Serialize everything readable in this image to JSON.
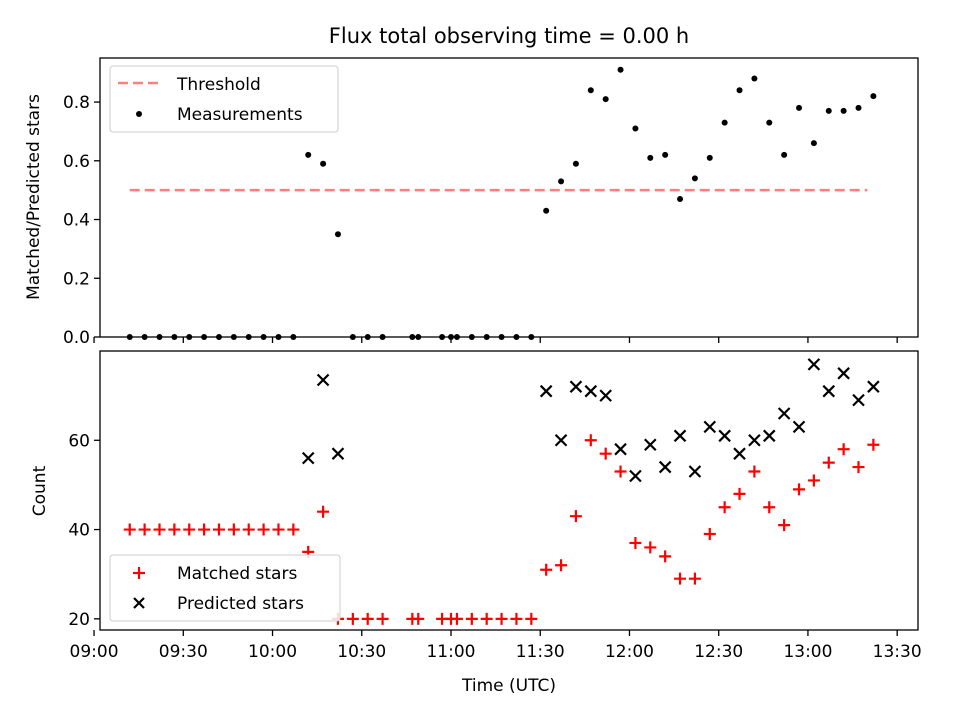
{
  "chart_data": [
    {
      "type": "scatter",
      "title": "Flux total observing time = 0.00 h",
      "ylabel": "Matched/Predicted stars",
      "xlabel": "",
      "xlim": [
        "09:02",
        "13:37"
      ],
      "ylim": [
        0,
        0.95
      ],
      "yticks": [
        "0.0",
        "0.2",
        "0.4",
        "0.6",
        "0.8"
      ],
      "grid": false,
      "legend_position": "top-left",
      "threshold": {
        "name": "Threshold",
        "value": 0.5,
        "x_start": "09:12",
        "x_end": "13:20",
        "color": "#ff7f7f"
      },
      "series": [
        {
          "name": "Measurements",
          "color": "#000000",
          "marker": "dot",
          "points": [
            [
              "09:12",
              0
            ],
            [
              "09:17",
              0
            ],
            [
              "09:22",
              0
            ],
            [
              "09:27",
              0
            ],
            [
              "09:32",
              0
            ],
            [
              "09:37",
              0
            ],
            [
              "09:42",
              0
            ],
            [
              "09:47",
              0
            ],
            [
              "09:52",
              0
            ],
            [
              "09:57",
              0
            ],
            [
              "10:02",
              0
            ],
            [
              "10:07",
              0
            ],
            [
              "10:12",
              0.62
            ],
            [
              "10:17",
              0.59
            ],
            [
              "10:22",
              0.35
            ],
            [
              "10:27",
              0
            ],
            [
              "10:32",
              0
            ],
            [
              "10:37",
              0
            ],
            [
              "10:47",
              0
            ],
            [
              "10:49",
              0
            ],
            [
              "10:57",
              0
            ],
            [
              "11:00",
              0
            ],
            [
              "11:02",
              0
            ],
            [
              "11:07",
              0
            ],
            [
              "11:12",
              0
            ],
            [
              "11:17",
              0
            ],
            [
              "11:22",
              0
            ],
            [
              "11:27",
              0
            ],
            [
              "11:32",
              0.43
            ],
            [
              "11:37",
              0.53
            ],
            [
              "11:42",
              0.59
            ],
            [
              "11:47",
              0.84
            ],
            [
              "11:52",
              0.81
            ],
            [
              "11:57",
              0.91
            ],
            [
              "12:02",
              0.71
            ],
            [
              "12:07",
              0.61
            ],
            [
              "12:12",
              0.62
            ],
            [
              "12:17",
              0.47
            ],
            [
              "12:22",
              0.54
            ],
            [
              "12:27",
              0.61
            ],
            [
              "12:32",
              0.73
            ],
            [
              "12:37",
              0.84
            ],
            [
              "12:42",
              0.88
            ],
            [
              "12:47",
              0.73
            ],
            [
              "12:52",
              0.62
            ],
            [
              "12:57",
              0.78
            ],
            [
              "13:02",
              0.66
            ],
            [
              "13:07",
              0.77
            ],
            [
              "13:12",
              0.77
            ],
            [
              "13:17",
              0.78
            ],
            [
              "13:22",
              0.82
            ]
          ]
        }
      ]
    },
    {
      "type": "scatter",
      "title": "",
      "ylabel": "Count",
      "xlabel": "Time (UTC)",
      "xlim": [
        "09:02",
        "13:37"
      ],
      "ylim": [
        17.5,
        80
      ],
      "yticks": [
        "20",
        "40",
        "60"
      ],
      "xticks": [
        "09:00",
        "09:30",
        "10:00",
        "10:30",
        "11:00",
        "11:30",
        "12:00",
        "12:30",
        "13:00",
        "13:30"
      ],
      "grid": false,
      "legend_position": "bottom-left",
      "series": [
        {
          "name": "Matched stars",
          "color": "#ff0000",
          "marker": "plus",
          "points": [
            [
              "09:12",
              40
            ],
            [
              "09:17",
              40
            ],
            [
              "09:22",
              40
            ],
            [
              "09:27",
              40
            ],
            [
              "09:32",
              40
            ],
            [
              "09:37",
              40
            ],
            [
              "09:42",
              40
            ],
            [
              "09:47",
              40
            ],
            [
              "09:52",
              40
            ],
            [
              "09:57",
              40
            ],
            [
              "10:02",
              40
            ],
            [
              "10:07",
              40
            ],
            [
              "10:12",
              35
            ],
            [
              "10:17",
              44
            ],
            [
              "10:22",
              20
            ],
            [
              "10:27",
              20
            ],
            [
              "10:32",
              20
            ],
            [
              "10:37",
              20
            ],
            [
              "10:47",
              20
            ],
            [
              "10:49",
              20
            ],
            [
              "10:57",
              20
            ],
            [
              "11:00",
              20
            ],
            [
              "11:02",
              20
            ],
            [
              "11:07",
              20
            ],
            [
              "11:12",
              20
            ],
            [
              "11:17",
              20
            ],
            [
              "11:22",
              20
            ],
            [
              "11:27",
              20
            ],
            [
              "11:32",
              31
            ],
            [
              "11:37",
              32
            ],
            [
              "11:42",
              43
            ],
            [
              "11:47",
              60
            ],
            [
              "11:52",
              57
            ],
            [
              "11:57",
              53
            ],
            [
              "12:02",
              37
            ],
            [
              "12:07",
              36
            ],
            [
              "12:12",
              34
            ],
            [
              "12:17",
              29
            ],
            [
              "12:22",
              29
            ],
            [
              "12:27",
              39
            ],
            [
              "12:32",
              45
            ],
            [
              "12:37",
              48
            ],
            [
              "12:42",
              53
            ],
            [
              "12:47",
              45
            ],
            [
              "12:52",
              41
            ],
            [
              "12:57",
              49
            ],
            [
              "13:02",
              51
            ],
            [
              "13:07",
              55
            ],
            [
              "13:12",
              58
            ],
            [
              "13:17",
              54
            ],
            [
              "13:22",
              59
            ]
          ]
        },
        {
          "name": "Predicted stars",
          "color": "#000000",
          "marker": "x",
          "points": [
            [
              "10:12",
              56
            ],
            [
              "10:17",
              73.5
            ],
            [
              "10:22",
              57
            ],
            [
              "11:32",
              71
            ],
            [
              "11:37",
              60
            ],
            [
              "11:42",
              72
            ],
            [
              "11:47",
              71
            ],
            [
              "11:52",
              70
            ],
            [
              "11:57",
              58
            ],
            [
              "12:02",
              52
            ],
            [
              "12:07",
              59
            ],
            [
              "12:12",
              54
            ],
            [
              "12:17",
              61
            ],
            [
              "12:22",
              53
            ],
            [
              "12:27",
              63
            ],
            [
              "12:32",
              61
            ],
            [
              "12:37",
              57
            ],
            [
              "12:42",
              60
            ],
            [
              "12:47",
              61
            ],
            [
              "12:52",
              66
            ],
            [
              "12:57",
              63
            ],
            [
              "13:02",
              77
            ],
            [
              "13:07",
              71
            ],
            [
              "13:12",
              75
            ],
            [
              "13:17",
              69
            ],
            [
              "13:22",
              72
            ]
          ]
        }
      ]
    }
  ]
}
